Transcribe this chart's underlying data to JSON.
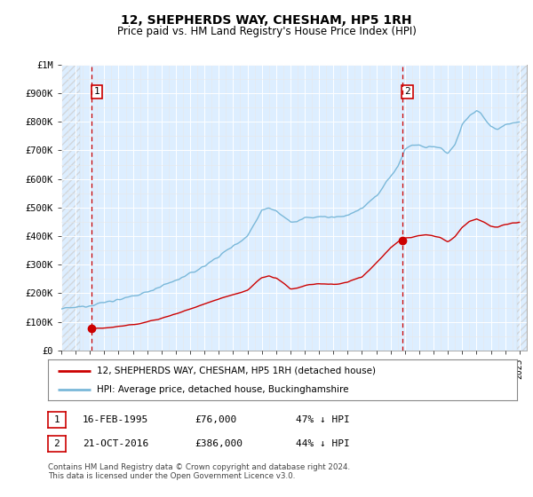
{
  "title": "12, SHEPHERDS WAY, CHESHAM, HP5 1RH",
  "subtitle": "Price paid vs. HM Land Registry's House Price Index (HPI)",
  "ylim": [
    0,
    1000000
  ],
  "xlim_start": 1993.0,
  "xlim_end": 2025.5,
  "hpi_color": "#7ab8d9",
  "price_color": "#cc0000",
  "marker_color": "#cc0000",
  "vline_color": "#cc0000",
  "background_color": "#ffffff",
  "plot_bg_color": "#ddeeff",
  "grid_color": "#ffffff",
  "hatch_color": "#bbbbbb",
  "transaction1_date": 1995.12,
  "transaction1_price": 76000,
  "transaction1_label": "1",
  "transaction2_date": 2016.8,
  "transaction2_price": 386000,
  "transaction2_label": "2",
  "legend_line1": "12, SHEPHERDS WAY, CHESHAM, HP5 1RH (detached house)",
  "legend_line2": "HPI: Average price, detached house, Buckinghamshire",
  "note1_date": "16-FEB-1995",
  "note1_price": "£76,000",
  "note1_hpi": "47% ↓ HPI",
  "note2_date": "21-OCT-2016",
  "note2_price": "£386,000",
  "note2_hpi": "44% ↓ HPI",
  "footer": "Contains HM Land Registry data © Crown copyright and database right 2024.\nThis data is licensed under the Open Government Licence v3.0.",
  "yticks": [
    0,
    100000,
    200000,
    300000,
    400000,
    500000,
    600000,
    700000,
    800000,
    900000,
    1000000
  ],
  "ytick_labels": [
    "£0",
    "£100K",
    "£200K",
    "£300K",
    "£400K",
    "£500K",
    "£600K",
    "£700K",
    "£800K",
    "£900K",
    "£1M"
  ],
  "hpi_anchors_x": [
    1993,
    1994,
    1995,
    1996,
    1997,
    1998,
    1999,
    2000,
    2001,
    2002,
    2003,
    2004,
    2005,
    2006,
    2007,
    2007.5,
    2008,
    2008.5,
    2009,
    2009.5,
    2010,
    2011,
    2012,
    2013,
    2014,
    2015,
    2016,
    2016.5,
    2017,
    2017.5,
    2018,
    2018.5,
    2019,
    2019.5,
    2020,
    2020.5,
    2021,
    2021.5,
    2022,
    2022.3,
    2022.7,
    2023,
    2023.5,
    2024,
    2024.5,
    2025
  ],
  "hpi_anchors_y": [
    145000,
    150000,
    158000,
    168000,
    178000,
    188000,
    205000,
    225000,
    245000,
    268000,
    295000,
    330000,
    365000,
    400000,
    490000,
    500000,
    490000,
    470000,
    448000,
    452000,
    462000,
    468000,
    465000,
    473000,
    495000,
    540000,
    610000,
    640000,
    705000,
    720000,
    718000,
    710000,
    715000,
    705000,
    690000,
    720000,
    790000,
    820000,
    840000,
    830000,
    800000,
    780000,
    775000,
    790000,
    795000,
    800000
  ],
  "price_anchors_x": [
    1995.12,
    1996,
    1997,
    1998,
    1999,
    2000,
    2001,
    2002,
    2003,
    2004,
    2005,
    2006,
    2007,
    2007.5,
    2008,
    2008.5,
    2009,
    2009.5,
    2010,
    2011,
    2012,
    2013,
    2014,
    2015,
    2016,
    2016.5,
    2016.8,
    2017,
    2018,
    2018.5,
    2019,
    2019.5,
    2020,
    2020.5,
    2021,
    2021.5,
    2022,
    2022.5,
    2023,
    2023.5,
    2024,
    2024.5,
    2025
  ],
  "price_anchors_y": [
    76000,
    79000,
    83000,
    90000,
    100000,
    112000,
    128000,
    145000,
    162000,
    180000,
    195000,
    210000,
    255000,
    260000,
    252000,
    235000,
    215000,
    218000,
    228000,
    233000,
    230000,
    238000,
    258000,
    305000,
    360000,
    378000,
    386000,
    392000,
    402000,
    403000,
    400000,
    393000,
    382000,
    398000,
    430000,
    450000,
    462000,
    450000,
    435000,
    432000,
    440000,
    445000,
    447000
  ]
}
